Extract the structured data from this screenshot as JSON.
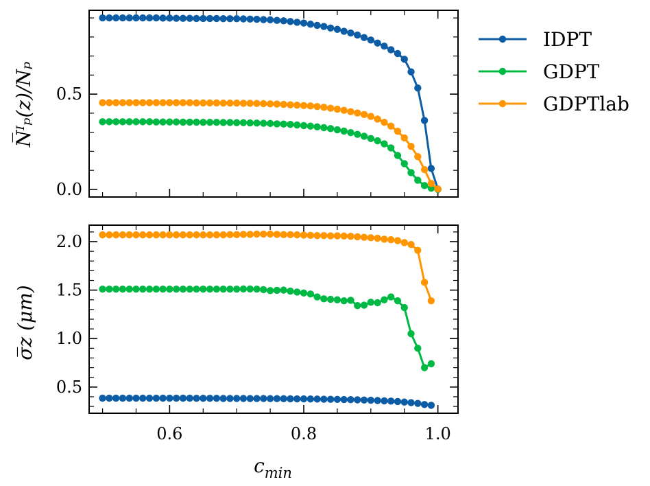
{
  "chart_data": [
    {
      "type": "line",
      "id": "top",
      "ylabel": "N̅ᴵₚ(z)/Nₚ",
      "xlim": [
        0.48,
        1.03
      ],
      "ylim": [
        -0.04,
        0.94
      ],
      "yticks": [
        0.0,
        0.5
      ],
      "yticks_minor": [
        0.1,
        0.2,
        0.3,
        0.4,
        0.6,
        0.7,
        0.8,
        0.9
      ],
      "show_xticklabels": false,
      "series": [
        {
          "name": "IDPT",
          "color": "#0C5DA5",
          "x": [
            0.5,
            0.51,
            0.52,
            0.53,
            0.54,
            0.55,
            0.56,
            0.57,
            0.58,
            0.59,
            0.6,
            0.61,
            0.62,
            0.63,
            0.64,
            0.65,
            0.66,
            0.67,
            0.68,
            0.69,
            0.7,
            0.71,
            0.72,
            0.73,
            0.74,
            0.75,
            0.76,
            0.77,
            0.78,
            0.79,
            0.8,
            0.81,
            0.82,
            0.83,
            0.84,
            0.85,
            0.86,
            0.87,
            0.88,
            0.89,
            0.9,
            0.91,
            0.92,
            0.93,
            0.94,
            0.95,
            0.96,
            0.97,
            0.98,
            0.99,
            1.0
          ],
          "y": [
            0.9,
            0.9,
            0.9,
            0.9,
            0.9,
            0.9,
            0.9,
            0.9,
            0.9,
            0.899,
            0.899,
            0.898,
            0.898,
            0.898,
            0.897,
            0.897,
            0.897,
            0.897,
            0.896,
            0.896,
            0.896,
            0.895,
            0.894,
            0.893,
            0.891,
            0.89,
            0.887,
            0.885,
            0.881,
            0.877,
            0.873,
            0.867,
            0.861,
            0.855,
            0.847,
            0.84,
            0.83,
            0.821,
            0.81,
            0.797,
            0.784,
            0.768,
            0.752,
            0.733,
            0.713,
            0.683,
            0.617,
            0.532,
            0.362,
            0.11,
            0.002
          ]
        },
        {
          "name": "GDPT",
          "color": "#00B945",
          "x": [
            0.5,
            0.51,
            0.52,
            0.53,
            0.54,
            0.55,
            0.56,
            0.57,
            0.58,
            0.59,
            0.6,
            0.61,
            0.62,
            0.63,
            0.64,
            0.65,
            0.66,
            0.67,
            0.68,
            0.69,
            0.7,
            0.71,
            0.72,
            0.73,
            0.74,
            0.75,
            0.76,
            0.77,
            0.78,
            0.79,
            0.8,
            0.81,
            0.82,
            0.83,
            0.84,
            0.85,
            0.86,
            0.87,
            0.88,
            0.89,
            0.9,
            0.91,
            0.92,
            0.93,
            0.94,
            0.95,
            0.96,
            0.97,
            0.98,
            0.99,
            1.0
          ],
          "y": [
            0.355,
            0.355,
            0.355,
            0.355,
            0.355,
            0.355,
            0.355,
            0.355,
            0.354,
            0.354,
            0.354,
            0.354,
            0.353,
            0.353,
            0.353,
            0.352,
            0.352,
            0.352,
            0.351,
            0.351,
            0.35,
            0.35,
            0.349,
            0.348,
            0.347,
            0.346,
            0.344,
            0.343,
            0.341,
            0.338,
            0.335,
            0.332,
            0.328,
            0.324,
            0.319,
            0.313,
            0.306,
            0.298,
            0.289,
            0.279,
            0.267,
            0.255,
            0.239,
            0.218,
            0.178,
            0.135,
            0.088,
            0.048,
            0.02,
            0.006,
            0.0
          ]
        },
        {
          "name": "GDPTlab",
          "color": "#FF9500",
          "x": [
            0.5,
            0.51,
            0.52,
            0.53,
            0.54,
            0.55,
            0.56,
            0.57,
            0.58,
            0.59,
            0.6,
            0.61,
            0.62,
            0.63,
            0.64,
            0.65,
            0.66,
            0.67,
            0.68,
            0.69,
            0.7,
            0.71,
            0.72,
            0.73,
            0.74,
            0.75,
            0.76,
            0.77,
            0.78,
            0.79,
            0.8,
            0.81,
            0.82,
            0.83,
            0.84,
            0.85,
            0.86,
            0.87,
            0.88,
            0.89,
            0.9,
            0.91,
            0.92,
            0.93,
            0.94,
            0.95,
            0.96,
            0.97,
            0.98,
            0.99,
            1.0
          ],
          "y": [
            0.455,
            0.455,
            0.455,
            0.455,
            0.455,
            0.455,
            0.455,
            0.455,
            0.455,
            0.455,
            0.455,
            0.455,
            0.455,
            0.455,
            0.454,
            0.454,
            0.454,
            0.454,
            0.453,
            0.453,
            0.453,
            0.452,
            0.452,
            0.451,
            0.45,
            0.449,
            0.448,
            0.446,
            0.444,
            0.442,
            0.44,
            0.438,
            0.435,
            0.431,
            0.426,
            0.421,
            0.415,
            0.408,
            0.401,
            0.393,
            0.383,
            0.369,
            0.352,
            0.332,
            0.305,
            0.27,
            0.226,
            0.172,
            0.104,
            0.031,
            0.002
          ]
        }
      ]
    },
    {
      "type": "line",
      "id": "bottom",
      "xlabel": "c_min",
      "ylabel": "σ̅z (μm)",
      "xlim": [
        0.48,
        1.03
      ],
      "ylim": [
        0.23,
        2.17
      ],
      "yticks": [
        0.5,
        1.0,
        1.5,
        2.0
      ],
      "yticks_minor": [
        0.3,
        0.4,
        0.6,
        0.7,
        0.8,
        0.9,
        1.1,
        1.2,
        1.3,
        1.4,
        1.6,
        1.7,
        1.8,
        1.9,
        2.1
      ],
      "show_xticklabels": true,
      "series": [
        {
          "name": "IDPT",
          "color": "#0C5DA5",
          "x": [
            0.5,
            0.51,
            0.52,
            0.53,
            0.54,
            0.55,
            0.56,
            0.57,
            0.58,
            0.59,
            0.6,
            0.61,
            0.62,
            0.63,
            0.64,
            0.65,
            0.66,
            0.67,
            0.68,
            0.69,
            0.7,
            0.71,
            0.72,
            0.73,
            0.74,
            0.75,
            0.76,
            0.77,
            0.78,
            0.79,
            0.8,
            0.81,
            0.82,
            0.83,
            0.84,
            0.85,
            0.86,
            0.87,
            0.88,
            0.89,
            0.9,
            0.91,
            0.92,
            0.93,
            0.94,
            0.95,
            0.96,
            0.97,
            0.98,
            0.99
          ],
          "y": [
            0.385,
            0.385,
            0.385,
            0.385,
            0.385,
            0.385,
            0.385,
            0.385,
            0.385,
            0.385,
            0.385,
            0.385,
            0.385,
            0.385,
            0.384,
            0.384,
            0.384,
            0.384,
            0.383,
            0.383,
            0.383,
            0.383,
            0.382,
            0.382,
            0.382,
            0.381,
            0.381,
            0.38,
            0.379,
            0.378,
            0.378,
            0.377,
            0.376,
            0.375,
            0.374,
            0.373,
            0.371,
            0.37,
            0.368,
            0.366,
            0.364,
            0.361,
            0.358,
            0.355,
            0.351,
            0.345,
            0.339,
            0.331,
            0.32,
            0.312
          ]
        },
        {
          "name": "GDPT",
          "color": "#00B945",
          "x": [
            0.5,
            0.51,
            0.52,
            0.53,
            0.54,
            0.55,
            0.56,
            0.57,
            0.58,
            0.59,
            0.6,
            0.61,
            0.62,
            0.63,
            0.64,
            0.65,
            0.66,
            0.67,
            0.68,
            0.69,
            0.7,
            0.71,
            0.72,
            0.73,
            0.74,
            0.75,
            0.76,
            0.77,
            0.78,
            0.79,
            0.8,
            0.81,
            0.82,
            0.83,
            0.84,
            0.85,
            0.86,
            0.87,
            0.88,
            0.89,
            0.9,
            0.91,
            0.92,
            0.93,
            0.94,
            0.95,
            0.96,
            0.97,
            0.98,
            0.99
          ],
          "y": [
            1.51,
            1.51,
            1.51,
            1.51,
            1.51,
            1.51,
            1.51,
            1.51,
            1.51,
            1.51,
            1.51,
            1.51,
            1.51,
            1.51,
            1.51,
            1.51,
            1.51,
            1.51,
            1.51,
            1.51,
            1.51,
            1.512,
            1.512,
            1.51,
            1.505,
            1.495,
            1.498,
            1.5,
            1.49,
            1.48,
            1.47,
            1.46,
            1.43,
            1.41,
            1.405,
            1.4,
            1.39,
            1.395,
            1.34,
            1.345,
            1.375,
            1.37,
            1.4,
            1.43,
            1.39,
            1.32,
            1.05,
            0.9,
            0.7,
            0.74
          ]
        },
        {
          "name": "GDPTlab",
          "color": "#FF9500",
          "x": [
            0.5,
            0.51,
            0.52,
            0.53,
            0.54,
            0.55,
            0.56,
            0.57,
            0.58,
            0.59,
            0.6,
            0.61,
            0.62,
            0.63,
            0.64,
            0.65,
            0.66,
            0.67,
            0.68,
            0.69,
            0.7,
            0.71,
            0.72,
            0.73,
            0.74,
            0.75,
            0.76,
            0.77,
            0.78,
            0.79,
            0.8,
            0.81,
            0.82,
            0.83,
            0.84,
            0.85,
            0.86,
            0.87,
            0.88,
            0.89,
            0.9,
            0.91,
            0.92,
            0.93,
            0.94,
            0.95,
            0.96,
            0.97,
            0.98,
            0.99
          ],
          "y": [
            2.07,
            2.07,
            2.07,
            2.07,
            2.07,
            2.07,
            2.07,
            2.07,
            2.07,
            2.07,
            2.07,
            2.07,
            2.07,
            2.07,
            2.07,
            2.07,
            2.07,
            2.07,
            2.07,
            2.072,
            2.072,
            2.075,
            2.075,
            2.078,
            2.078,
            2.078,
            2.075,
            2.072,
            2.072,
            2.07,
            2.068,
            2.065,
            2.062,
            2.062,
            2.06,
            2.06,
            2.058,
            2.055,
            2.05,
            2.045,
            2.04,
            2.035,
            2.025,
            2.02,
            2.01,
            1.99,
            1.97,
            1.91,
            1.58,
            1.39
          ]
        }
      ]
    }
  ],
  "xticks": [
    0.6,
    0.8,
    1.0
  ],
  "xtick_labels": [
    "0.6",
    "0.8",
    "1.0"
  ],
  "xticks_minor": [
    0.5,
    0.55,
    0.65,
    0.7,
    0.75,
    0.85,
    0.9,
    0.95
  ],
  "legend": {
    "placement": "outside-right",
    "entries": [
      "IDPT",
      "GDPT",
      "GDPTlab"
    ]
  }
}
